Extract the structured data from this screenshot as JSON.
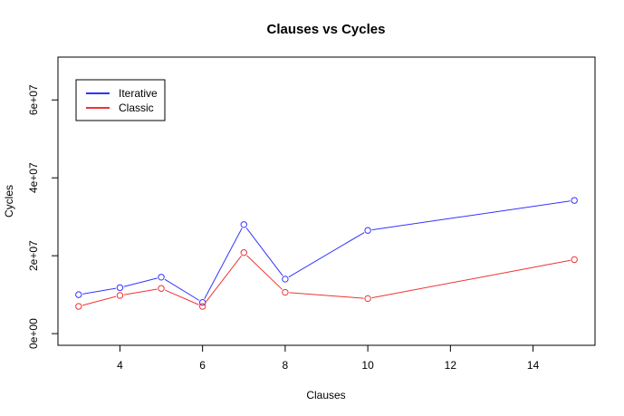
{
  "chart_data": {
    "type": "line",
    "title": "Clauses vs Cycles",
    "xlabel": "Clauses",
    "ylabel": "Cycles",
    "x": [
      3,
      4,
      5,
      6,
      7,
      8,
      10,
      15
    ],
    "xlim": [
      2.5,
      15.5
    ],
    "ylim": [
      -3000000,
      71000000
    ],
    "xticks": [
      4,
      6,
      8,
      10,
      12,
      14
    ],
    "xtick_labels": [
      "4",
      "6",
      "8",
      "10",
      "12",
      "14"
    ],
    "yticks": [
      0,
      20000000,
      40000000,
      60000000
    ],
    "ytick_labels": [
      "0e+00",
      "2e+07",
      "4e+07",
      "6e+07"
    ],
    "grid": false,
    "legend_position": "top-left",
    "series": [
      {
        "name": "Iterative",
        "color": "#3333ff",
        "values": [
          10000000,
          11800000,
          14500000,
          8000000,
          28000000,
          14000000,
          26500000,
          34200000
        ]
      },
      {
        "name": "Classic",
        "color": "#ee3333",
        "values": [
          7000000,
          9800000,
          11600000,
          7000000,
          20800000,
          10600000,
          9000000,
          19000000
        ]
      }
    ]
  }
}
